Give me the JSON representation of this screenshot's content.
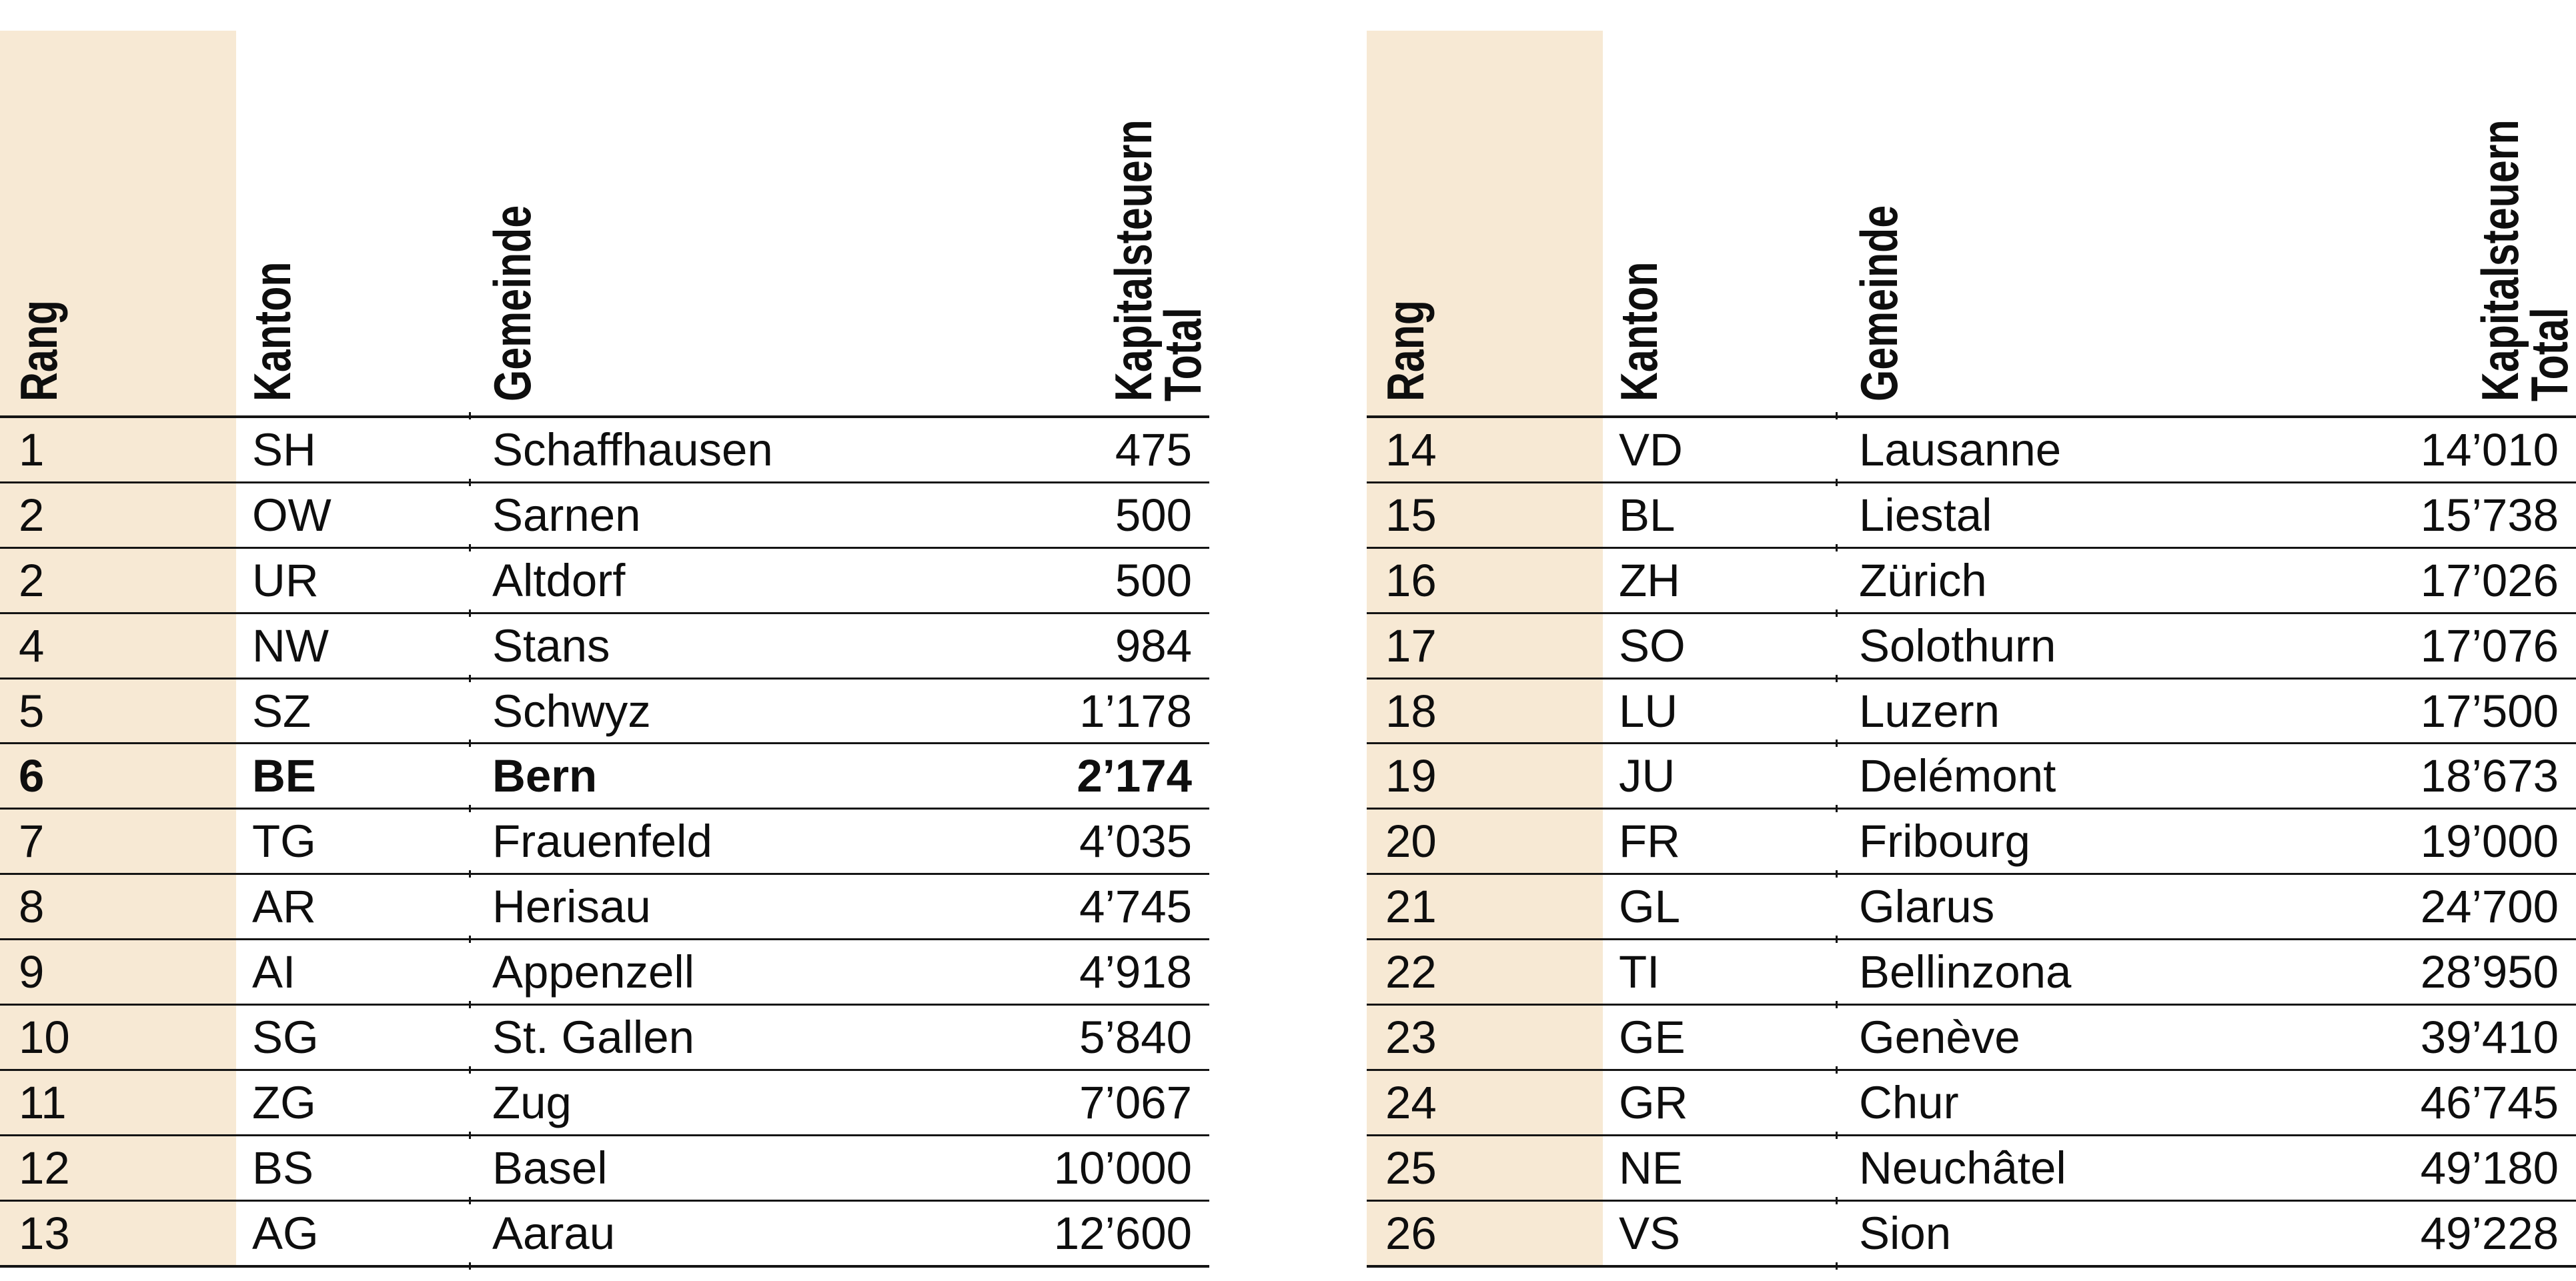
{
  "page": {
    "background_color": "#ffffff",
    "band_color": "#f7e9d4",
    "line_color": "#141414",
    "text_color": "#0e0e0e"
  },
  "columns": {
    "rang": "Rang",
    "kanton": "Kanton",
    "gemeinde": "Gemeinde",
    "kapitalsteuern": "Kapitalsteuern",
    "total": "Total"
  },
  "tables": [
    {
      "rows": [
        {
          "rank": "1",
          "kanton": "SH",
          "gemeinde": "Schaffhausen",
          "total": "475",
          "bold": false
        },
        {
          "rank": "2",
          "kanton": "OW",
          "gemeinde": "Sarnen",
          "total": "500",
          "bold": false
        },
        {
          "rank": "2",
          "kanton": "UR",
          "gemeinde": "Altdorf",
          "total": "500",
          "bold": false
        },
        {
          "rank": "4",
          "kanton": "NW",
          "gemeinde": "Stans",
          "total": "984",
          "bold": false
        },
        {
          "rank": "5",
          "kanton": "SZ",
          "gemeinde": "Schwyz",
          "total": "1’178",
          "bold": false
        },
        {
          "rank": "6",
          "kanton": "BE",
          "gemeinde": "Bern",
          "total": "2’174",
          "bold": true
        },
        {
          "rank": "7",
          "kanton": "TG",
          "gemeinde": "Frauenfeld",
          "total": "4’035",
          "bold": false
        },
        {
          "rank": "8",
          "kanton": "AR",
          "gemeinde": "Herisau",
          "total": "4’745",
          "bold": false
        },
        {
          "rank": "9",
          "kanton": "AI",
          "gemeinde": "Appenzell",
          "total": "4’918",
          "bold": false
        },
        {
          "rank": "10",
          "kanton": "SG",
          "gemeinde": "St. Gallen",
          "total": "5’840",
          "bold": false
        },
        {
          "rank": "11",
          "kanton": "ZG",
          "gemeinde": "Zug",
          "total": "7’067",
          "bold": false
        },
        {
          "rank": "12",
          "kanton": "BS",
          "gemeinde": "Basel",
          "total": "10’000",
          "bold": false
        },
        {
          "rank": "13",
          "kanton": "AG",
          "gemeinde": "Aarau",
          "total": "12’600",
          "bold": false
        }
      ]
    },
    {
      "rows": [
        {
          "rank": "14",
          "kanton": "VD",
          "gemeinde": "Lausanne",
          "total": "14’010",
          "bold": false
        },
        {
          "rank": "15",
          "kanton": "BL",
          "gemeinde": "Liestal",
          "total": "15’738",
          "bold": false
        },
        {
          "rank": "16",
          "kanton": "ZH",
          "gemeinde": "Zürich",
          "total": "17’026",
          "bold": false
        },
        {
          "rank": "17",
          "kanton": "SO",
          "gemeinde": "Solothurn",
          "total": "17’076",
          "bold": false
        },
        {
          "rank": "18",
          "kanton": "LU",
          "gemeinde": "Luzern",
          "total": "17’500",
          "bold": false
        },
        {
          "rank": "19",
          "kanton": "JU",
          "gemeinde": "Delémont",
          "total": "18’673",
          "bold": false
        },
        {
          "rank": "20",
          "kanton": "FR",
          "gemeinde": "Fribourg",
          "total": "19’000",
          "bold": false
        },
        {
          "rank": "21",
          "kanton": "GL",
          "gemeinde": "Glarus",
          "total": "24’700",
          "bold": false
        },
        {
          "rank": "22",
          "kanton": "TI",
          "gemeinde": "Bellinzona",
          "total": "28’950",
          "bold": false
        },
        {
          "rank": "23",
          "kanton": "GE",
          "gemeinde": "Genève",
          "total": "39’410",
          "bold": false
        },
        {
          "rank": "24",
          "kanton": "GR",
          "gemeinde": "Chur",
          "total": "46’745",
          "bold": false
        },
        {
          "rank": "25",
          "kanton": "NE",
          "gemeinde": "Neuchâtel",
          "total": "49’180",
          "bold": false
        },
        {
          "rank": "26",
          "kanton": "VS",
          "gemeinde": "Sion",
          "total": "49’228",
          "bold": false
        }
      ]
    }
  ]
}
